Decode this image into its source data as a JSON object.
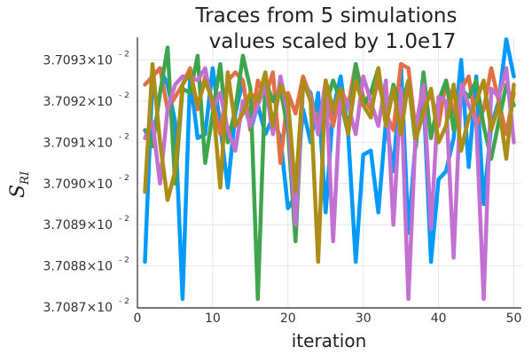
{
  "chart_data": {
    "type": "line",
    "title": "Traces from 5 simulations",
    "subtitle": "values scaled by 1.0e17",
    "xlabel": "iteration",
    "ylabel": "S",
    "ylabel_sub": "RI",
    "xlim": [
      0,
      51
    ],
    "ylim": [
      3.708698,
      3.709355
    ],
    "grid": true,
    "legend": "none",
    "x_ticks": [
      0,
      10,
      20,
      30,
      40,
      50
    ],
    "y_ticks": [
      {
        "value": 3.7087,
        "label": "3.7087×10",
        "exp": "- 2"
      },
      {
        "value": 3.7088,
        "label": "3.7088×10",
        "exp": "- 2"
      },
      {
        "value": 3.7089,
        "label": "3.7089×10",
        "exp": "- 2"
      },
      {
        "value": 3.709,
        "label": "3.7090×10",
        "exp": "- 2"
      },
      {
        "value": 3.7091,
        "label": "3.7091×10",
        "exp": "- 2"
      },
      {
        "value": 3.7092,
        "label": "3.7092×10",
        "exp": "- 2"
      },
      {
        "value": 3.7093,
        "label": "3.7093×10",
        "exp": "- 2"
      }
    ],
    "x": [
      1,
      2,
      3,
      4,
      5,
      6,
      7,
      8,
      9,
      10,
      11,
      12,
      13,
      14,
      15,
      16,
      17,
      18,
      19,
      20,
      21,
      22,
      23,
      24,
      25,
      26,
      27,
      28,
      29,
      30,
      31,
      32,
      33,
      34,
      35,
      36,
      37,
      38,
      39,
      40,
      41,
      42,
      43,
      44,
      45,
      46,
      47,
      48,
      49,
      50
    ],
    "series": [
      {
        "color": "#009AFA",
        "values": [
          3.70881,
          3.70926,
          3.70928,
          3.70924,
          3.70915,
          3.70872,
          3.70926,
          3.70911,
          3.70912,
          3.70928,
          3.70914,
          3.70899,
          3.70917,
          3.70925,
          3.70913,
          3.70919,
          3.70912,
          3.70916,
          3.70911,
          3.70894,
          3.70897,
          3.70918,
          3.7091,
          3.70922,
          3.70893,
          3.70918,
          3.70926,
          3.70912,
          3.70881,
          3.70907,
          3.70908,
          3.70893,
          3.70915,
          3.70903,
          3.70929,
          3.70888,
          3.70911,
          3.70922,
          3.70881,
          3.70901,
          3.70903,
          3.70911,
          3.7093,
          3.70904,
          3.70926,
          3.70895,
          3.70914,
          3.7092,
          3.70935,
          3.70926
        ]
      },
      {
        "color": "#E36F47",
        "values": [
          3.70924,
          3.70926,
          3.70928,
          3.70918,
          3.70921,
          3.70924,
          3.70928,
          3.70918,
          3.70926,
          3.7092,
          3.70912,
          3.70925,
          3.70927,
          3.70925,
          3.70913,
          3.70925,
          3.70921,
          3.70927,
          3.70905,
          3.70922,
          3.70917,
          3.70926,
          3.70921,
          3.70914,
          3.70923,
          3.70914,
          3.70923,
          3.70919,
          3.70929,
          3.70921,
          3.70918,
          3.70925,
          3.70917,
          3.70913,
          3.70929,
          3.70928,
          3.70912,
          3.70918,
          3.70922,
          3.70914,
          3.70925,
          3.70917,
          3.70923,
          3.70926,
          3.70914,
          3.70918,
          3.70928,
          3.7092,
          3.70912,
          3.70922
        ]
      },
      {
        "color": "#3EA44E",
        "values": [
          3.70913,
          3.70909,
          3.70922,
          3.70933,
          3.709,
          3.70923,
          3.70922,
          3.70931,
          3.70905,
          3.70917,
          3.70929,
          3.7091,
          3.70918,
          3.70931,
          3.70923,
          3.70872,
          3.70925,
          3.7092,
          3.70923,
          3.70913,
          3.70886,
          3.70924,
          3.70922,
          3.70912,
          3.70919,
          3.70925,
          3.7092,
          3.70912,
          3.70929,
          3.70919,
          3.70922,
          3.70928,
          3.70915,
          3.70924,
          3.70918,
          3.70925,
          3.70909,
          3.70927,
          3.70911,
          3.7092,
          3.70925,
          3.70913,
          3.70923,
          3.70921,
          3.70925,
          3.70914,
          3.70906,
          3.70915,
          3.70924,
          3.70919
        ]
      },
      {
        "color": "#C271D2",
        "values": [
          3.70911,
          3.70915,
          3.709,
          3.70918,
          3.70924,
          3.70926,
          3.70926,
          3.70925,
          3.70928,
          3.70918,
          3.70922,
          3.70913,
          3.70908,
          3.7092,
          3.70914,
          3.70919,
          3.70924,
          3.70912,
          3.70926,
          3.70917,
          3.7089,
          3.70925,
          3.70921,
          3.70912,
          3.70925,
          3.70886,
          3.70922,
          3.70919,
          3.70912,
          3.70926,
          3.7092,
          3.70914,
          3.70925,
          3.7089,
          3.70923,
          3.70872,
          3.70914,
          3.70924,
          3.70889,
          3.70921,
          3.7092,
          3.70882,
          3.70924,
          3.70919,
          3.70915,
          3.70872,
          3.70923,
          3.70921,
          3.70928,
          3.7091
        ]
      },
      {
        "color": "#AC8D18",
        "values": [
          3.70898,
          3.70929,
          3.7091,
          3.70896,
          3.70903,
          3.70924,
          3.70927,
          3.70919,
          3.70925,
          3.7092,
          3.70899,
          3.70927,
          3.70914,
          3.70917,
          3.70922,
          3.7092,
          3.70927,
          3.70914,
          3.70924,
          3.7092,
          3.70898,
          3.70925,
          3.7092,
          3.70881,
          3.70925,
          3.70918,
          3.70923,
          3.70912,
          3.70925,
          3.70919,
          3.70916,
          3.70928,
          3.70914,
          3.70923,
          3.70912,
          3.70925,
          3.70911,
          3.70917,
          3.70923,
          3.7091,
          3.70914,
          3.70924,
          3.70908,
          3.70916,
          3.7092,
          3.70925,
          3.70913,
          3.70919,
          3.70906,
          3.70924
        ]
      }
    ]
  }
}
